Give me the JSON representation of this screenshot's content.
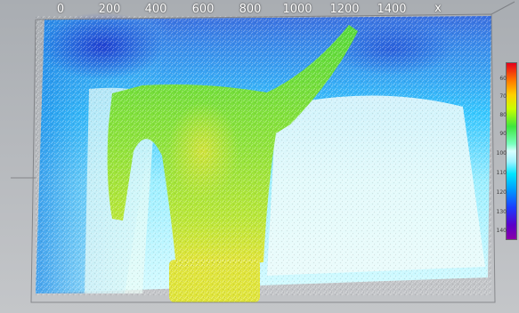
{
  "viewer": {
    "x_axis": {
      "ticks": [
        "0",
        "200",
        "400",
        "600",
        "800",
        "1000",
        "1200",
        "1400"
      ],
      "name": "x"
    },
    "colorbar": {
      "ticks": [
        "60",
        "70",
        "80",
        "90",
        "100",
        "110",
        "120",
        "130",
        "140"
      ]
    },
    "colors": {
      "background": "#b9bcbf",
      "object": "#5fd43c",
      "object_highlight": "#d8e23a",
      "surface_near": "#ffffff",
      "surface_far": "#1d5ed8"
    }
  }
}
